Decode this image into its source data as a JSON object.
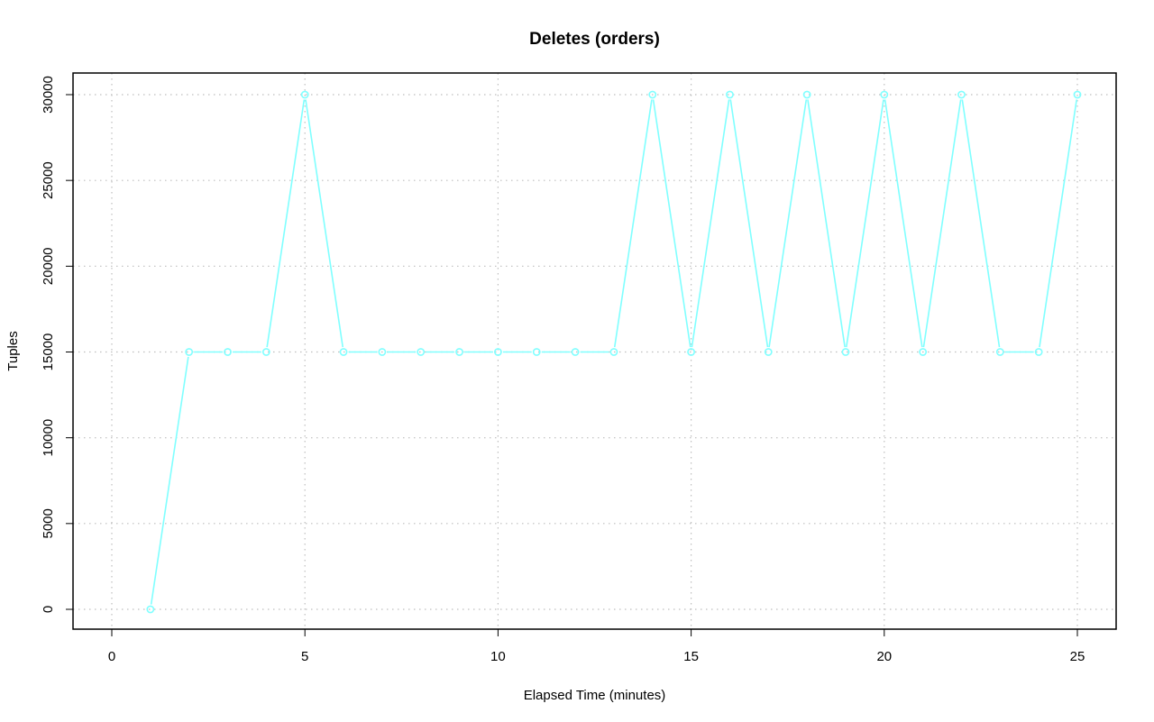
{
  "chart_data": {
    "type": "line",
    "title": "Deletes (orders)",
    "xlabel": "Elapsed Time (minutes)",
    "ylabel": "Tuples",
    "xlim": [
      0,
      25
    ],
    "ylim": [
      0,
      30000
    ],
    "x_ticks": [
      0,
      5,
      10,
      15,
      20,
      25
    ],
    "x_tick_labels": [
      "0",
      "5",
      "10",
      "15",
      "20",
      "25"
    ],
    "y_ticks": [
      0,
      5000,
      10000,
      15000,
      20000,
      25000,
      30000
    ],
    "y_tick_labels": [
      "0",
      "5000",
      "10000",
      "15000",
      "20000",
      "25000",
      "30000"
    ],
    "grid": true,
    "series": [
      {
        "color": "#80ffff",
        "marker": "circle",
        "x": [
          1,
          2,
          3,
          4,
          5,
          6,
          7,
          8,
          9,
          10,
          11,
          12,
          13,
          14,
          15,
          16,
          17,
          18,
          19,
          20,
          21,
          22,
          23,
          24,
          25
        ],
        "values": [
          0,
          15000,
          15000,
          15000,
          30000,
          15000,
          15000,
          15000,
          15000,
          15000,
          15000,
          15000,
          15000,
          30000,
          15000,
          30000,
          15000,
          30000,
          15000,
          30000,
          15000,
          30000,
          15000,
          15000,
          30000
        ]
      }
    ]
  }
}
